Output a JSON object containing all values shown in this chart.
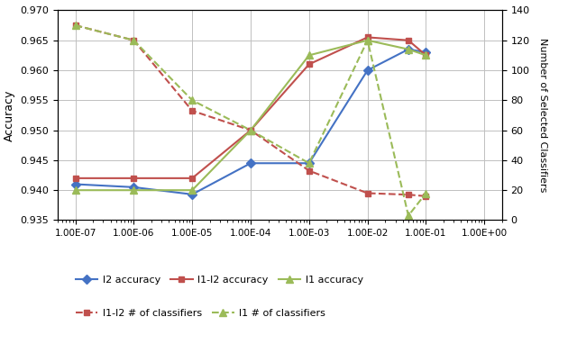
{
  "x_values": [
    1e-07,
    1e-06,
    1e-05,
    0.0001,
    0.001,
    0.01,
    0.05,
    0.1
  ],
  "l2_accuracy": [
    0.941,
    0.9405,
    0.9393,
    0.9445,
    0.9445,
    0.96,
    0.9635,
    0.963
  ],
  "l1l2_accuracy": [
    0.942,
    0.942,
    0.942,
    0.95,
    0.961,
    0.9655,
    0.965,
    0.9625
  ],
  "l1_accuracy": [
    0.94,
    0.94,
    0.94,
    0.95,
    0.9625,
    0.965,
    0.9635,
    0.9625
  ],
  "l1l2_classifiers": [
    130,
    120,
    73,
    60,
    33,
    18,
    17,
    16
  ],
  "l1_classifiers": [
    130,
    120,
    80,
    60,
    38,
    120,
    3,
    18
  ],
  "x_ticks": [
    1e-07,
    1e-06,
    1e-05,
    0.0001,
    0.001,
    0.01,
    0.1,
    1.0
  ],
  "x_tick_labels": [
    "1.00E-07",
    "1.00E-06",
    "1.00E-05",
    "1.00E-04",
    "1.00E-03",
    "1.00E-02",
    "1.00E-01",
    "1.00E+00"
  ],
  "xlim": [
    5e-08,
    2.0
  ],
  "ylim_left": [
    0.935,
    0.97
  ],
  "ylim_right": [
    0,
    140
  ],
  "yticks_left": [
    0.935,
    0.94,
    0.945,
    0.95,
    0.955,
    0.96,
    0.965,
    0.97
  ],
  "yticks_right": [
    0,
    20,
    40,
    60,
    80,
    100,
    120,
    140
  ],
  "ylabel_left": "Accuracy",
  "ylabel_right": "Number of Selected Classifiers",
  "l2_color": "#4472C4",
  "l1l2_color": "#C0504D",
  "l1_color": "#9BBB59",
  "bg_color": "#FFFFFF",
  "grid_color": "#C0C0C0",
  "legend_labels": [
    "l2 accuracy",
    "l1-l2 accuracy",
    "l1 accuracy",
    "l1-l2 # of classifiers",
    "l1 # of classifiers"
  ]
}
